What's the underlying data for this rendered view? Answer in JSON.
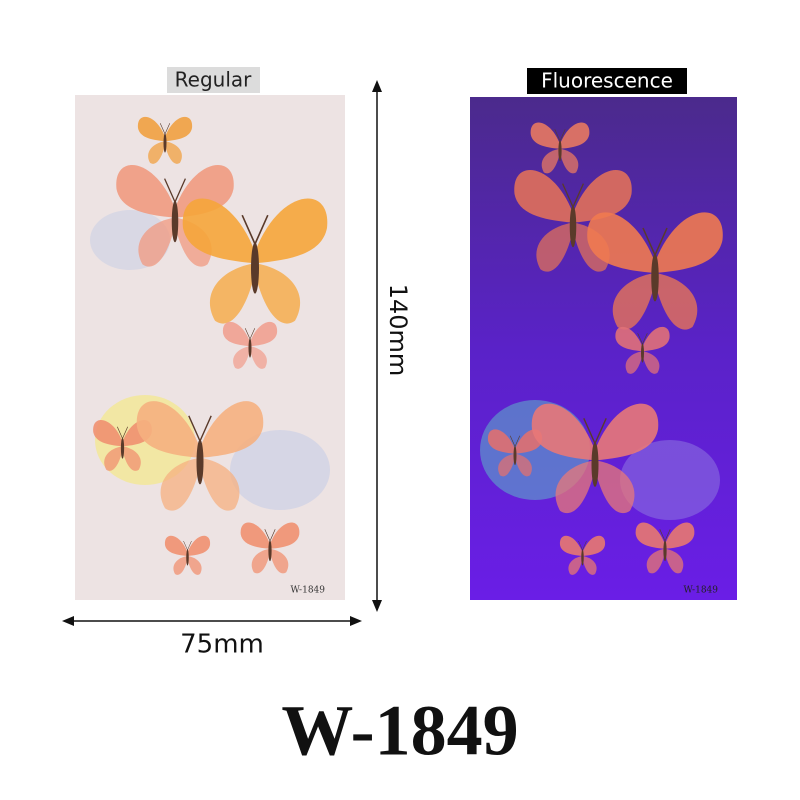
{
  "panels": [
    {
      "label": "Regular",
      "code": "W-1849"
    },
    {
      "label": "Fluorescence",
      "code": "W-1849"
    }
  ],
  "dimensions": {
    "height": "140mm",
    "width": "75mm"
  },
  "title": "W-1849"
}
